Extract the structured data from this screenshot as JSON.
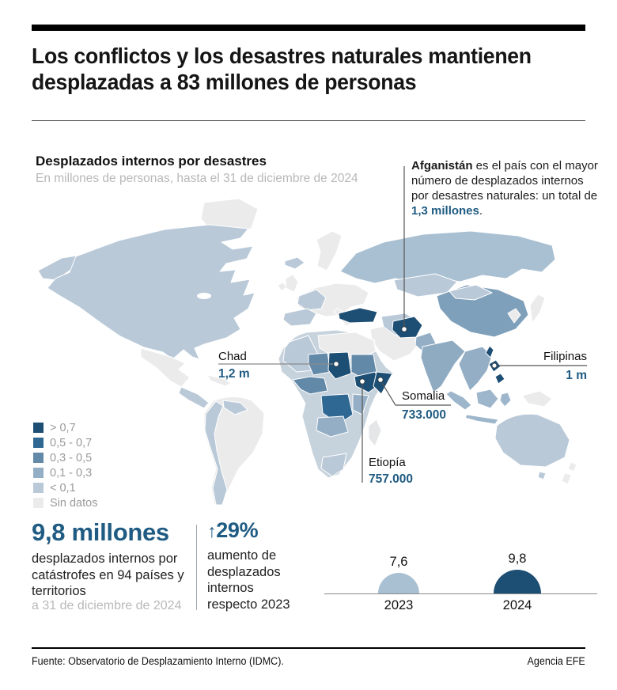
{
  "header": {
    "title_line1": "Los conflictos y los desastres naturales mantienen",
    "title_line2": "desplazadas a 83 millones de personas"
  },
  "map_section": {
    "heading": "Desplazados internos por desastres",
    "subheading": "En millones de personas, hasta el 31 de diciembre de 2024",
    "annotation": {
      "country": "Afganistán",
      "body": " es el país con el mayor número de desplazados internos por desastres naturales: un total de ",
      "value": "1,3 millones",
      "suffix": "."
    },
    "callouts": {
      "chad": {
        "label": "Chad",
        "value": "1,2 m"
      },
      "somalia": {
        "label": "Somalia",
        "value": "733.000"
      },
      "etiopia": {
        "label": "Etiopía",
        "value": "757.000"
      },
      "filipinas": {
        "label": "Filipinas",
        "value": "1 m"
      }
    },
    "legend": [
      {
        "label": "> 0,7",
        "color": "#1d4e74"
      },
      {
        "label": "0,5 - 0,7",
        "color": "#2f6893"
      },
      {
        "label": "0,3 - 0,5",
        "color": "#6389a9"
      },
      {
        "label": "0,1 - 0,3",
        "color": "#94afc5"
      },
      {
        "label": "< 0,1",
        "color": "#bac9d8"
      },
      {
        "label": "Sin datos",
        "color": "#ebebeb"
      }
    ]
  },
  "stats": {
    "big_number": "9,8 millones",
    "big_desc": "desplazados internos por catástrofes en 94 países y territorios",
    "big_date": "a 31 de diciembre de 2024",
    "pct_arrow": "↑",
    "pct_value": "29%",
    "pct_desc": "aumento de desplazados internos respecto 2023"
  },
  "chart_data": [
    {
      "type": "pie",
      "variant": "proportional_semicircles",
      "title": "Desplazados internos por desastres (millones de personas)",
      "categories": [
        "2023",
        "2024"
      ],
      "values": [
        7.6,
        9.8
      ],
      "value_labels": [
        "7,6",
        "9,8"
      ],
      "colors": [
        "#a9c0d2",
        "#1d4e74"
      ],
      "baseline": true
    },
    {
      "type": "heatmap",
      "variant": "choropleth_world_map",
      "title": "Desplazados internos por desastres",
      "subtitle": "En millones de personas, hasta el 31 de diciembre de 2024",
      "unit": "millones de personas",
      "bins": [
        "> 0,7",
        "0,5 - 0,7",
        "0,3 - 0,5",
        "0,1 - 0,3",
        "< 0,1",
        "Sin datos"
      ],
      "bin_colors": [
        "#1d4e74",
        "#2f6893",
        "#6389a9",
        "#94afc5",
        "#bac9d8",
        "#ebebeb"
      ],
      "highlighted": [
        {
          "country": "Afganistán",
          "value": "1,3 millones"
        },
        {
          "country": "Chad",
          "value": "1,2 m"
        },
        {
          "country": "Filipinas",
          "value": "1 m"
        },
        {
          "country": "Etiopía",
          "value": "757.000"
        },
        {
          "country": "Somalia",
          "value": "733.000"
        }
      ]
    }
  ],
  "footer": {
    "source": "Fuente: Observatorio de Desplazamiento Interno (IDMC).",
    "credit": "Agencia EFE"
  },
  "colors": {
    "accent_blue": "#1f5b82",
    "dark_navy": "#1d4e74",
    "muted_gray": "#b8b8b8",
    "legend_text": "#9a9a9a"
  }
}
